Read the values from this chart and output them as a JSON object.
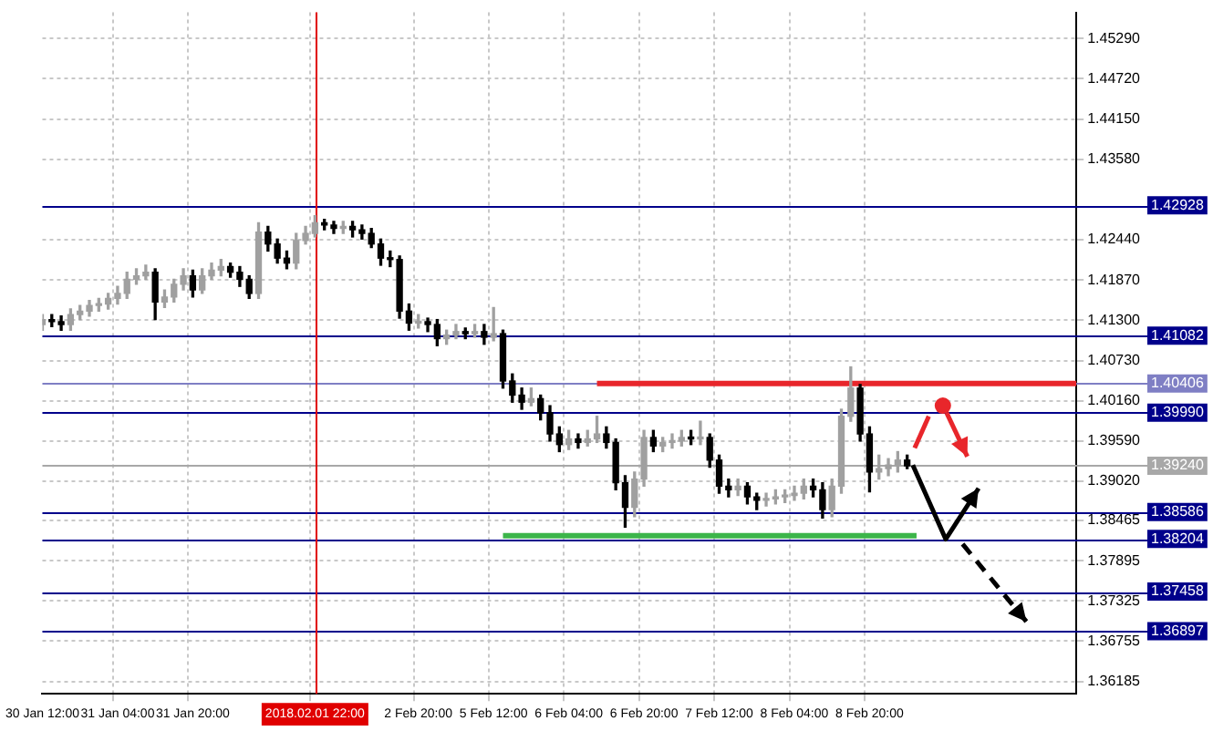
{
  "chart_data": {
    "type": "candlestick",
    "categories": [
      "30 Jan 12:00",
      null,
      null,
      null,
      null,
      null,
      null,
      null,
      "31 Jan 04:00",
      null,
      null,
      null,
      null,
      null,
      null,
      null,
      "31 Jan 20:00",
      null,
      null,
      null,
      null,
      null,
      null,
      null,
      null,
      null,
      null,
      null,
      null,
      "2018.02.01 22:00",
      null,
      null,
      null,
      null,
      null,
      null,
      null,
      null,
      null,
      null,
      "2 Feb 20:00",
      null,
      null,
      null,
      null,
      null,
      null,
      null,
      "5 Feb 12:00",
      null,
      null,
      null,
      null,
      null,
      null,
      null,
      "6 Feb 04:00",
      null,
      null,
      null,
      null,
      null,
      null,
      null,
      "6 Feb 20:00",
      null,
      null,
      null,
      null,
      null,
      null,
      null,
      "7 Feb 12:00",
      null,
      null,
      null,
      null,
      null,
      null,
      null,
      "8 Feb 04:00",
      null,
      null,
      null,
      null,
      null,
      null,
      null,
      "8 Feb 20:00",
      null,
      null,
      null,
      null,
      null,
      null,
      null,
      null,
      null,
      null,
      null,
      null,
      null,
      null,
      null,
      null,
      null,
      null,
      null,
      null,
      null,
      null
    ],
    "ohlc": [
      [
        1.4124,
        1.4138,
        1.4116,
        1.4131
      ],
      [
        1.4131,
        1.4138,
        1.4121,
        1.4128
      ],
      [
        1.4128,
        1.4136,
        1.4116,
        1.4124
      ],
      [
        1.4124,
        1.4146,
        1.4116,
        1.4138
      ],
      [
        1.4138,
        1.4151,
        1.4131,
        1.4143
      ],
      [
        1.4143,
        1.4158,
        1.4136,
        1.4151
      ],
      [
        1.4151,
        1.4161,
        1.4143,
        1.4153
      ],
      [
        1.4153,
        1.4168,
        1.4146,
        1.4161
      ],
      [
        1.4161,
        1.4178,
        1.4153,
        1.4168
      ],
      [
        1.4168,
        1.4198,
        1.4161,
        1.4188
      ],
      [
        1.4188,
        1.4203,
        1.4181,
        1.4193
      ],
      [
        1.4193,
        1.4208,
        1.4188,
        1.4198
      ],
      [
        1.4198,
        1.4203,
        1.4131,
        1.4156
      ],
      [
        1.4156,
        1.4173,
        1.4148,
        1.4163
      ],
      [
        1.4163,
        1.4188,
        1.4156,
        1.4181
      ],
      [
        1.4181,
        1.4203,
        1.4173,
        1.4193
      ],
      [
        1.4193,
        1.4201,
        1.4163,
        1.4173
      ],
      [
        1.4173,
        1.4203,
        1.4168,
        1.4193
      ],
      [
        1.4193,
        1.4211,
        1.4188,
        1.4201
      ],
      [
        1.4201,
        1.4216,
        1.4193,
        1.4206
      ],
      [
        1.4206,
        1.4211,
        1.4191,
        1.4198
      ],
      [
        1.4198,
        1.4206,
        1.4178,
        1.4188
      ],
      [
        1.4188,
        1.4193,
        1.4161,
        1.4168
      ],
      [
        1.4168,
        1.4268,
        1.4161,
        1.4255
      ],
      [
        1.4255,
        1.4263,
        1.4228,
        1.4238
      ],
      [
        1.4238,
        1.4245,
        1.4211,
        1.4218
      ],
      [
        1.4218,
        1.4228,
        1.4203,
        1.4211
      ],
      [
        1.4211,
        1.4253,
        1.4203,
        1.4243
      ],
      [
        1.4243,
        1.4263,
        1.4238,
        1.4253
      ],
      [
        1.4253,
        1.4278,
        1.4248,
        1.4268
      ],
      [
        1.4268,
        1.4273,
        1.4258,
        1.4265
      ],
      [
        1.4265,
        1.427,
        1.4253,
        1.426
      ],
      [
        1.426,
        1.427,
        1.4253,
        1.4263
      ],
      [
        1.4263,
        1.427,
        1.4248,
        1.4258
      ],
      [
        1.4258,
        1.4265,
        1.4245,
        1.4253
      ],
      [
        1.4253,
        1.426,
        1.4233,
        1.4238
      ],
      [
        1.4238,
        1.4245,
        1.4208,
        1.4218
      ],
      [
        1.4218,
        1.4228,
        1.4206,
        1.4216
      ],
      [
        1.4216,
        1.4221,
        1.4133,
        1.4143
      ],
      [
        1.4143,
        1.4153,
        1.4116,
        1.4126
      ],
      [
        1.4126,
        1.4138,
        1.4119,
        1.4128
      ],
      [
        1.4128,
        1.4133,
        1.4114,
        1.4124
      ],
      [
        1.4124,
        1.4131,
        1.4094,
        1.4104
      ],
      [
        1.4104,
        1.4116,
        1.4096,
        1.4109
      ],
      [
        1.4109,
        1.4124,
        1.4104,
        1.4114
      ],
      [
        1.4114,
        1.4119,
        1.4104,
        1.4111
      ],
      [
        1.4111,
        1.4124,
        1.4106,
        1.4114
      ],
      [
        1.4114,
        1.4124,
        1.4096,
        1.4106
      ],
      [
        1.4106,
        1.4148,
        1.4101,
        1.4111
      ],
      [
        1.4111,
        1.4116,
        1.4034,
        1.4044
      ],
      [
        1.4044,
        1.4054,
        1.4014,
        1.4024
      ],
      [
        1.4024,
        1.4034,
        1.4004,
        1.4014
      ],
      [
        1.4014,
        1.4034,
        1.4009,
        1.4019
      ],
      [
        1.4019,
        1.4024,
        1.3989,
        1.3999
      ],
      [
        1.3999,
        1.4009,
        1.3959,
        1.3969
      ],
      [
        1.3969,
        1.3979,
        1.3944,
        1.3954
      ],
      [
        1.3954,
        1.3974,
        1.3947,
        1.3962
      ],
      [
        1.3962,
        1.3969,
        1.3949,
        1.3957
      ],
      [
        1.3957,
        1.3974,
        1.3952,
        1.3962
      ],
      [
        1.3962,
        1.3994,
        1.3957,
        1.3969
      ],
      [
        1.3969,
        1.3979,
        1.3949,
        1.3957
      ],
      [
        1.3957,
        1.3962,
        1.389,
        1.39
      ],
      [
        1.39,
        1.391,
        1.3837,
        1.3865
      ],
      [
        1.3865,
        1.3915,
        1.3852,
        1.3905
      ],
      [
        1.3905,
        1.3974,
        1.3895,
        1.3964
      ],
      [
        1.3964,
        1.3974,
        1.3944,
        1.3952
      ],
      [
        1.3952,
        1.3964,
        1.3944,
        1.3957
      ],
      [
        1.3957,
        1.3969,
        1.3949,
        1.3959
      ],
      [
        1.3959,
        1.3974,
        1.3952,
        1.3964
      ],
      [
        1.3964,
        1.3974,
        1.3954,
        1.3962
      ],
      [
        1.3962,
        1.3987,
        1.3954,
        1.3964
      ],
      [
        1.3964,
        1.3969,
        1.3922,
        1.3932
      ],
      [
        1.3932,
        1.3939,
        1.3885,
        1.3895
      ],
      [
        1.3895,
        1.3905,
        1.388,
        1.389
      ],
      [
        1.389,
        1.3905,
        1.3882,
        1.3895
      ],
      [
        1.3895,
        1.39,
        1.387,
        1.388
      ],
      [
        1.388,
        1.3885,
        1.3862,
        1.3875
      ],
      [
        1.3875,
        1.3885,
        1.3867,
        1.3877
      ],
      [
        1.3877,
        1.389,
        1.387,
        1.388
      ],
      [
        1.388,
        1.389,
        1.3872,
        1.3882
      ],
      [
        1.3882,
        1.3895,
        1.3875,
        1.3885
      ],
      [
        1.3885,
        1.3905,
        1.3877,
        1.3895
      ],
      [
        1.3895,
        1.3905,
        1.388,
        1.389
      ],
      [
        1.389,
        1.39,
        1.385,
        1.3862
      ],
      [
        1.3862,
        1.3905,
        1.3852,
        1.3895
      ],
      [
        1.3895,
        1.4004,
        1.3885,
        1.3994
      ],
      [
        1.3994,
        1.4064,
        1.3987,
        1.4034
      ],
      [
        1.4034,
        1.4039,
        1.3959,
        1.3969
      ],
      [
        1.3969,
        1.3979,
        1.3887,
        1.3915
      ],
      [
        1.3915,
        1.3939,
        1.3905,
        1.392
      ],
      [
        1.392,
        1.3934,
        1.391,
        1.3925
      ],
      [
        1.3925,
        1.3944,
        1.3915,
        1.3932
      ],
      [
        1.3932,
        1.3939,
        1.392,
        1.3924
      ],
      null,
      null,
      null,
      null,
      null,
      null,
      null,
      null,
      null,
      null,
      null,
      null,
      null,
      null,
      null,
      null,
      null,
      null
    ],
    "colors": [
      "#a0a0a0",
      "#000000",
      "#000000",
      "#a0a0a0",
      "#a0a0a0",
      "#a0a0a0",
      "#a0a0a0",
      "#a0a0a0",
      "#a0a0a0",
      "#a0a0a0",
      "#a0a0a0",
      "#a0a0a0",
      "#000000",
      "#a0a0a0",
      "#a0a0a0",
      "#a0a0a0",
      "#000000",
      "#a0a0a0",
      "#a0a0a0",
      "#a0a0a0",
      "#000000",
      "#000000",
      "#000000",
      "#a0a0a0",
      "#000000",
      "#000000",
      "#000000",
      "#a0a0a0",
      "#a0a0a0",
      "#a0a0a0",
      "#000000",
      "#000000",
      "#a0a0a0",
      "#000000",
      "#000000",
      "#000000",
      "#000000",
      "#000000",
      "#000000",
      "#000000",
      "#a0a0a0",
      "#000000",
      "#000000",
      "#a0a0a0",
      "#a0a0a0",
      "#000000",
      "#a0a0a0",
      "#000000",
      "#a0a0a0",
      "#000000",
      "#000000",
      "#000000",
      "#a0a0a0",
      "#000000",
      "#000000",
      "#000000",
      "#a0a0a0",
      "#000000",
      "#a0a0a0",
      "#a0a0a0",
      "#000000",
      "#000000",
      "#000000",
      "#a0a0a0",
      "#a0a0a0",
      "#000000",
      "#a0a0a0",
      "#a0a0a0",
      "#a0a0a0",
      "#000000",
      "#a0a0a0",
      "#000000",
      "#000000",
      "#000000",
      "#a0a0a0",
      "#000000",
      "#000000",
      "#a0a0a0",
      "#a0a0a0",
      "#a0a0a0",
      "#a0a0a0",
      "#a0a0a0",
      "#000000",
      "#000000",
      "#a0a0a0",
      "#a0a0a0",
      "#a0a0a0",
      "#000000",
      "#000000",
      "#a0a0a0",
      "#a0a0a0",
      "#a0a0a0",
      "#000000",
      null,
      null,
      null,
      null,
      null,
      null,
      null,
      null,
      null,
      null,
      null,
      null,
      null,
      null,
      null,
      null,
      null,
      null
    ],
    "series": [
      {
        "type": "line",
        "color": "#e8262b",
        "values": [
          null,
          null,
          null,
          null,
          null,
          null,
          null,
          null,
          null,
          null,
          null,
          null,
          null,
          null,
          null,
          null,
          null,
          null,
          null,
          null,
          null,
          null,
          null,
          null,
          null,
          null,
          null,
          null,
          null,
          null,
          null,
          null,
          null,
          null,
          null,
          null,
          null,
          null,
          null,
          null,
          null,
          null,
          null,
          null,
          null,
          null,
          null,
          null,
          null,
          null,
          null,
          null,
          null,
          null,
          null,
          null,
          null,
          null,
          null,
          1.40406,
          1.40406,
          1.40406,
          1.40406,
          1.40406,
          1.40406,
          1.40406,
          1.40406,
          1.40406,
          1.40406,
          1.40406,
          1.40406,
          1.40406,
          1.40406,
          1.40406,
          1.40406,
          1.40406,
          1.40406,
          1.40406,
          1.40406,
          1.40406,
          1.40406,
          1.40406,
          1.40406,
          1.40406,
          1.40406,
          1.40406,
          1.40406,
          1.40406,
          1.40406,
          1.40406,
          1.40406,
          1.40406,
          1.40406,
          1.40406,
          1.40406,
          1.40406,
          1.40406,
          1.40406,
          1.40406,
          1.40406,
          1.40406,
          1.40406,
          1.40406,
          1.40406,
          1.40406,
          1.40406,
          1.40406,
          1.40406,
          1.40406,
          1.40406,
          1.40406
        ]
      },
      {
        "type": "line",
        "color": "#3cb54a",
        "values": [
          null,
          null,
          null,
          null,
          null,
          null,
          null,
          null,
          null,
          null,
          null,
          null,
          null,
          null,
          null,
          null,
          null,
          null,
          null,
          null,
          null,
          null,
          null,
          null,
          null,
          null,
          null,
          null,
          null,
          null,
          null,
          null,
          null,
          null,
          null,
          null,
          null,
          null,
          null,
          null,
          null,
          null,
          null,
          null,
          null,
          null,
          null,
          null,
          null,
          1.3825,
          1.3825,
          1.3825,
          1.3825,
          1.3825,
          1.3825,
          1.3825,
          1.3825,
          1.3825,
          1.3825,
          1.3825,
          1.3825,
          1.3825,
          1.3825,
          1.3825,
          1.3825,
          1.3825,
          1.3825,
          1.3825,
          1.3825,
          1.3825,
          1.3825,
          1.3825,
          1.3825,
          1.3825,
          1.3825,
          1.3825,
          1.3825,
          1.3825,
          1.3825,
          1.3825,
          1.3825,
          1.3825,
          1.3825,
          1.3825,
          1.3825,
          1.3825,
          1.3825,
          1.3825,
          1.3825,
          1.3825,
          1.3825,
          1.3825,
          1.3825,
          1.3825,
          null,
          null,
          null,
          null,
          null,
          null,
          null,
          null,
          null,
          null,
          null,
          null,
          null,
          null,
          null,
          null,
          null
        ]
      }
    ],
    "ylim": [
      1.3601,
      1.4566
    ],
    "yticks": [
      {
        "value": 1.4529,
        "label": "1.45290"
      },
      {
        "value": 1.4472,
        "label": "1.44720"
      },
      {
        "value": 1.4415,
        "label": "1.44150"
      },
      {
        "value": 1.4358,
        "label": "1.43580"
      },
      {
        "value": 1.4244,
        "label": "1.42440"
      },
      {
        "value": 1.4187,
        "label": "1.41870"
      },
      {
        "value": 1.413,
        "label": "1.41300"
      },
      {
        "value": 1.4073,
        "label": "1.40730"
      },
      {
        "value": 1.4016,
        "label": "1.40160"
      },
      {
        "value": 1.3959,
        "label": "1.39590"
      },
      {
        "value": 1.3902,
        "label": "1.39020"
      },
      {
        "value": 1.38465,
        "label": "1.38465"
      },
      {
        "value": 1.37895,
        "label": "1.37895"
      },
      {
        "value": 1.37325,
        "label": "1.37325"
      },
      {
        "value": 1.36755,
        "label": "1.36755"
      },
      {
        "value": 1.36185,
        "label": "1.36185"
      }
    ],
    "ref_lines": [
      {
        "axis": "y",
        "value": 1.42928,
        "label": "1.42928",
        "color": "#00008b"
      },
      {
        "axis": "y",
        "value": 1.41082,
        "label": "1.41082",
        "color": "#00008b"
      },
      {
        "axis": "y",
        "value": 1.40406,
        "label": "1.40406",
        "color": "#7f7fc4"
      },
      {
        "axis": "y",
        "value": 1.3999,
        "label": "1.39990",
        "color": "#00008b"
      },
      {
        "axis": "y",
        "value": 1.3924,
        "label": "1.39240",
        "color": "#a8a8a8"
      },
      {
        "axis": "y",
        "value": 1.38586,
        "label": "1.38586",
        "color": "#00008b"
      },
      {
        "axis": "y",
        "value": 1.38204,
        "label": "1.38204",
        "color": "#00008b"
      },
      {
        "axis": "y",
        "value": 1.37458,
        "label": "1.37458",
        "color": "#00008b"
      },
      {
        "axis": "y",
        "value": 1.36897,
        "label": "1.36897",
        "color": "#00008b"
      },
      {
        "axis": "x",
        "value": "2018.02.01 22:00",
        "color": "#e00000"
      }
    ],
    "grid": true,
    "legend": false
  }
}
